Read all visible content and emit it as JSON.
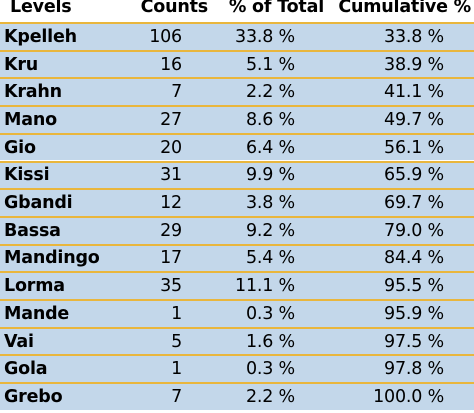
{
  "header": {
    "levels": "Levels",
    "counts": "Counts",
    "pct_total": "% of Total",
    "cumulative": "Cumulative %"
  },
  "rows": [
    {
      "level": "Kpelleh",
      "count": "106",
      "pct": "33.8 %",
      "cum": "33.8 %"
    },
    {
      "level": "Kru",
      "count": "16",
      "pct": "5.1 %",
      "cum": "38.9 %"
    },
    {
      "level": "Krahn",
      "count": "7",
      "pct": "2.2 %",
      "cum": "41.1 %"
    },
    {
      "level": "Mano",
      "count": "27",
      "pct": "8.6 %",
      "cum": "49.7 %"
    },
    {
      "level": "Gio",
      "count": "20",
      "pct": "6.4 %",
      "cum": "56.1 %"
    },
    {
      "level": "Kissi",
      "count": "31",
      "pct": "9.9 %",
      "cum": "65.9 %"
    },
    {
      "level": "Gbandi",
      "count": "12",
      "pct": "3.8 %",
      "cum": "69.7 %"
    },
    {
      "level": "Bassa",
      "count": "29",
      "pct": "9.2 %",
      "cum": "79.0 %"
    },
    {
      "level": "Mandingo",
      "count": "17",
      "pct": "5.4 %",
      "cum": "84.4 %"
    },
    {
      "level": "Lorma",
      "count": "35",
      "pct": "11.1 %",
      "cum": "95.5 %"
    },
    {
      "level": "Mande",
      "count": "1",
      "pct": "0.3 %",
      "cum": "95.9 %"
    },
    {
      "level": "Vai",
      "count": "5",
      "pct": "1.6 %",
      "cum": "97.5 %"
    },
    {
      "level": "Gola",
      "count": "1",
      "pct": "0.3 %",
      "cum": "97.8 %"
    },
    {
      "level": "Grebo",
      "count": "7",
      "pct": "2.2 %",
      "cum": "100.0 %"
    }
  ],
  "colors": {
    "row_background": "#c3d7ea",
    "separator": "#e9b63d",
    "header_background": "#ffffff"
  }
}
